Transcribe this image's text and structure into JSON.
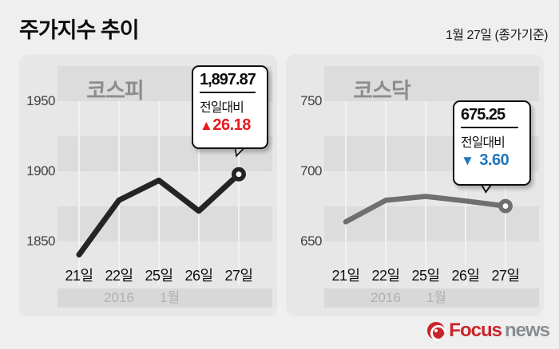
{
  "header": {
    "title": "주가지수 추이",
    "date": "1월 27일 (종가기준)"
  },
  "chart_data": [
    {
      "type": "line",
      "title": "코스피",
      "x": [
        "21일",
        "22일",
        "25일",
        "26일",
        "27일"
      ],
      "values": [
        1840.53,
        1879.43,
        1893.5,
        1871.69,
        1897.87
      ],
      "y_ticks": [
        1950,
        1900,
        1850
      ],
      "ylim": [
        1825,
        1990
      ],
      "grid": "horizontal-bands",
      "line_color": "#242424",
      "period": {
        "year": "2016",
        "month": "1월"
      },
      "callout": {
        "value": "1,897.87",
        "label": "전일대비",
        "arrow": "▲",
        "change": "26.18",
        "direction": "up",
        "color": "#e8191e"
      }
    },
    {
      "type": "line",
      "title": "코스닥",
      "x": [
        "21일",
        "22일",
        "25일",
        "26일",
        "27일"
      ],
      "values": [
        664.0,
        679.3,
        682.1,
        678.85,
        675.25
      ],
      "y_ticks": [
        750,
        700,
        650
      ],
      "ylim": [
        645,
        785
      ],
      "grid": "horizontal-bands",
      "line_color": "#6f6f6f",
      "period": {
        "year": "2016",
        "month": "1월"
      },
      "callout": {
        "value": "675.25",
        "label": "전일대비",
        "arrow": "▼",
        "change": "3.60",
        "direction": "down",
        "color": "#2176bc"
      }
    }
  ],
  "footer": {
    "brand_focus": "Focus",
    "brand_news": "news"
  }
}
